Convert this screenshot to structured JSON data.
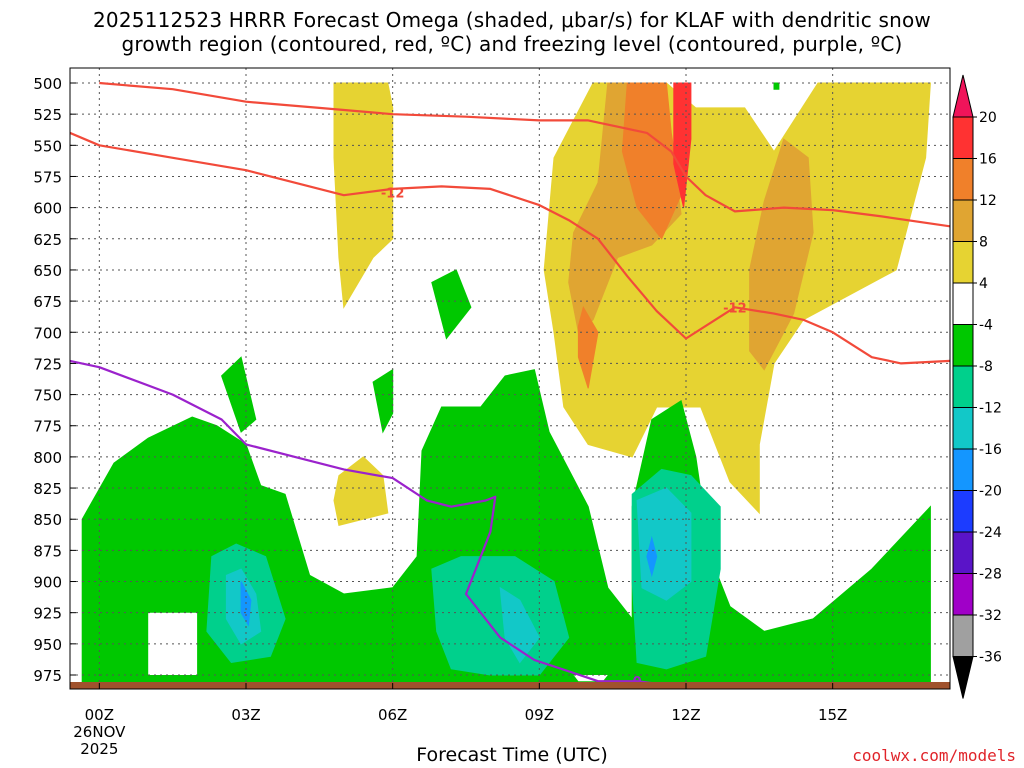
{
  "title": {
    "line1": "2025112523 HRRR Forecast Omega (shaded, μbar/s) for KLAF with dendritic snow",
    "line2": "growth region (contoured, red, ºC) and freezing level (contoured, purple, ºC)"
  },
  "credit": "coolwx.com/models",
  "chart_data": {
    "type": "heatmap",
    "xlabel": "Forecast Time (UTC)",
    "x_ticks": [
      {
        "hour": 0,
        "label": "00Z",
        "sub": [
          "26NOV",
          "2025"
        ]
      },
      {
        "hour": 3,
        "label": "03Z"
      },
      {
        "hour": 6,
        "label": "06Z"
      },
      {
        "hour": 9,
        "label": "09Z"
      },
      {
        "hour": 12,
        "label": "12Z"
      },
      {
        "hour": 15,
        "label": "15Z"
      }
    ],
    "xlim": [
      -0.6,
      17.4
    ],
    "y_ticks": [
      500,
      525,
      550,
      575,
      600,
      625,
      650,
      675,
      700,
      725,
      750,
      775,
      800,
      825,
      850,
      875,
      900,
      925,
      950,
      975
    ],
    "colorbar": {
      "levels": [
        "20",
        "16",
        "12",
        "8",
        "4",
        "-4",
        "-8",
        "-12",
        "-16",
        "-20",
        "-24",
        "-28",
        "-32",
        "-36"
      ],
      "colors": [
        "#f0145a",
        "#ff3232",
        "#f0802a",
        "#e0a532",
        "#e6d332",
        "#ffffff",
        "#00c800",
        "#00d08c",
        "#12c8c8",
        "#1496ff",
        "#1c3cff",
        "#5a14c8",
        "#a000c8",
        "#a0a0a0",
        "#000000"
      ]
    },
    "fills": [
      {
        "name": "ascent-4-8",
        "color": "#e6d332",
        "points": [
          [
            4.8,
            500
          ],
          [
            5.9,
            500
          ],
          [
            6,
            520
          ],
          [
            6,
            625
          ],
          [
            5.6,
            640
          ],
          [
            5,
            680
          ],
          [
            4.9,
            640
          ],
          [
            4.8,
            560
          ]
        ]
      },
      {
        "name": "ascent-4-8",
        "color": "#e6d332",
        "points": [
          [
            9.3,
            560
          ],
          [
            10.1,
            500
          ],
          [
            11.6,
            500
          ],
          [
            12.2,
            520
          ],
          [
            13.2,
            520
          ],
          [
            13.8,
            555
          ],
          [
            14.7,
            500
          ],
          [
            17,
            500
          ],
          [
            16.9,
            560
          ],
          [
            16.3,
            650
          ],
          [
            14.4,
            690
          ],
          [
            13.8,
            725
          ],
          [
            13.5,
            790
          ],
          [
            13.5,
            845
          ],
          [
            12.9,
            820
          ],
          [
            12.3,
            760
          ],
          [
            11.4,
            760
          ],
          [
            10.9,
            800
          ],
          [
            10,
            790
          ],
          [
            9.5,
            760
          ],
          [
            9.3,
            700
          ],
          [
            9.1,
            650
          ]
        ]
      },
      {
        "name": "ascent-8-12",
        "color": "#e0a532",
        "points": [
          [
            10.4,
            500
          ],
          [
            11.6,
            500
          ],
          [
            11.6,
            525
          ],
          [
            11.9,
            605
          ],
          [
            11.3,
            630
          ],
          [
            10.6,
            640
          ],
          [
            10.1,
            690
          ],
          [
            9.8,
            700
          ],
          [
            9.6,
            660
          ],
          [
            9.7,
            620
          ],
          [
            10.2,
            580
          ]
        ]
      },
      {
        "name": "ascent-8-12",
        "color": "#e0a532",
        "points": [
          [
            14,
            545
          ],
          [
            14.5,
            560
          ],
          [
            14.6,
            620
          ],
          [
            14.2,
            685
          ],
          [
            13.6,
            730
          ],
          [
            13.3,
            715
          ],
          [
            13.3,
            650
          ],
          [
            13.6,
            595
          ]
        ]
      },
      {
        "name": "ascent-12-16",
        "color": "#f0802a",
        "points": [
          [
            10.8,
            500
          ],
          [
            11.6,
            500
          ],
          [
            11.7,
            540
          ],
          [
            11.9,
            590
          ],
          [
            11.5,
            625
          ],
          [
            11,
            600
          ],
          [
            10.7,
            555
          ]
        ]
      },
      {
        "name": "ascent-12-16",
        "color": "#f0802a",
        "points": [
          [
            9.9,
            680
          ],
          [
            10.2,
            700
          ],
          [
            10,
            745
          ],
          [
            9.8,
            720
          ],
          [
            9.8,
            695
          ]
        ]
      },
      {
        "name": "ascent-16-20",
        "color": "#ff3232",
        "points": [
          [
            11.75,
            500
          ],
          [
            12.1,
            500
          ],
          [
            12.1,
            545
          ],
          [
            11.95,
            600
          ],
          [
            11.75,
            565
          ]
        ]
      },
      {
        "name": "yellow-small",
        "color": "#e6d332",
        "points": [
          [
            4.9,
            815
          ],
          [
            5.4,
            800
          ],
          [
            5.8,
            815
          ],
          [
            5.9,
            845
          ],
          [
            4.9,
            855
          ],
          [
            4.8,
            835
          ]
        ]
      },
      {
        "name": "yellow-small",
        "color": "#e6d332",
        "points": [
          [
            9.8,
            880
          ],
          [
            10,
            870
          ],
          [
            10.1,
            900
          ],
          [
            9.9,
            945
          ],
          [
            9.8,
            920
          ]
        ]
      },
      {
        "name": "descent-minus4",
        "color": "#00c800",
        "points": [
          [
            -0.35,
            985
          ],
          [
            -0.35,
            850
          ],
          [
            0.3,
            805
          ],
          [
            1,
            785
          ],
          [
            1.9,
            768
          ],
          [
            2.4,
            775
          ],
          [
            3,
            790
          ],
          [
            3.3,
            823
          ],
          [
            3.8,
            830
          ],
          [
            4.3,
            895
          ],
          [
            5,
            910
          ],
          [
            6,
            905
          ],
          [
            6.5,
            880
          ],
          [
            6.6,
            795
          ],
          [
            7,
            760
          ],
          [
            7.8,
            760
          ],
          [
            8.3,
            735
          ],
          [
            8.9,
            730
          ],
          [
            9.2,
            780
          ],
          [
            9.6,
            810
          ],
          [
            10,
            840
          ],
          [
            10.4,
            905
          ],
          [
            10.9,
            930
          ],
          [
            10.9,
            840
          ],
          [
            11.3,
            770
          ],
          [
            11.9,
            755
          ],
          [
            12.2,
            800
          ],
          [
            12.5,
            880
          ],
          [
            12.9,
            920
          ],
          [
            13.6,
            940
          ],
          [
            14.6,
            930
          ],
          [
            15.8,
            890
          ],
          [
            17,
            840
          ],
          [
            17,
            985
          ]
        ]
      },
      {
        "name": "descent-minus4",
        "color": "#00c800",
        "points": [
          [
            5.6,
            740
          ],
          [
            6,
            730
          ],
          [
            6,
            765
          ],
          [
            5.8,
            780
          ]
        ]
      },
      {
        "name": "descent-minus4",
        "color": "#00c800",
        "points": [
          [
            2.5,
            735
          ],
          [
            2.9,
            720
          ],
          [
            3.2,
            770
          ],
          [
            2.9,
            780
          ]
        ]
      },
      {
        "name": "descent-minus4",
        "color": "#00c800",
        "points": [
          [
            6.8,
            660
          ],
          [
            7.3,
            650
          ],
          [
            7.6,
            680
          ],
          [
            7.1,
            705
          ]
        ]
      },
      {
        "name": "descent-minus4",
        "color": "#00c800",
        "points": [
          [
            13.8,
            500
          ],
          [
            13.9,
            500
          ],
          [
            13.9,
            505
          ],
          [
            13.8,
            505
          ]
        ]
      },
      {
        "name": "descent-minus8",
        "color": "#00d08c",
        "points": [
          [
            2.3,
            880
          ],
          [
            2.8,
            870
          ],
          [
            3.4,
            880
          ],
          [
            3.8,
            930
          ],
          [
            3.5,
            960
          ],
          [
            2.7,
            965
          ],
          [
            2.2,
            940
          ]
        ]
      },
      {
        "name": "descent-minus8",
        "color": "#00d08c",
        "points": [
          [
            6.8,
            890
          ],
          [
            7.4,
            880
          ],
          [
            8,
            880
          ],
          [
            8.5,
            880
          ],
          [
            9.3,
            900
          ],
          [
            9.6,
            945
          ],
          [
            9,
            975
          ],
          [
            8,
            975
          ],
          [
            7.2,
            970
          ],
          [
            6.9,
            940
          ]
        ]
      },
      {
        "name": "descent-minus8",
        "color": "#00d08c",
        "points": [
          [
            10.9,
            830
          ],
          [
            11.5,
            810
          ],
          [
            12.1,
            815
          ],
          [
            12.7,
            840
          ],
          [
            12.7,
            890
          ],
          [
            12.4,
            960
          ],
          [
            11.6,
            970
          ],
          [
            11,
            965
          ],
          [
            10.9,
            900
          ]
        ]
      },
      {
        "name": "descent-minus12",
        "color": "#12c8c8",
        "points": [
          [
            2.6,
            895
          ],
          [
            2.9,
            890
          ],
          [
            3.2,
            910
          ],
          [
            3.3,
            940
          ],
          [
            2.9,
            950
          ],
          [
            2.6,
            930
          ]
        ]
      },
      {
        "name": "descent-minus12",
        "color": "#12c8c8",
        "points": [
          [
            8.2,
            905
          ],
          [
            8.6,
            915
          ],
          [
            9,
            945
          ],
          [
            8.6,
            965
          ],
          [
            8.3,
            945
          ]
        ]
      },
      {
        "name": "descent-minus12",
        "color": "#12c8c8",
        "points": [
          [
            11,
            835
          ],
          [
            11.6,
            825
          ],
          [
            12.1,
            845
          ],
          [
            12.1,
            900
          ],
          [
            11.6,
            915
          ],
          [
            11.1,
            905
          ]
        ]
      },
      {
        "name": "descent-minus16",
        "color": "#1496ff",
        "points": [
          [
            2.9,
            900
          ],
          [
            3.1,
            915
          ],
          [
            3.05,
            935
          ],
          [
            2.9,
            925
          ]
        ]
      },
      {
        "name": "descent-minus16",
        "color": "#1496ff",
        "points": [
          [
            11.3,
            865
          ],
          [
            11.4,
            880
          ],
          [
            11.3,
            895
          ],
          [
            11.2,
            880
          ]
        ]
      }
    ],
    "masks": [
      {
        "name": "undefined-low",
        "points": [
          [
            1,
            925
          ],
          [
            2,
            925
          ],
          [
            2,
            975
          ],
          [
            1,
            975
          ]
        ]
      },
      {
        "name": "undefined-low",
        "points": [
          [
            9.7,
            975
          ],
          [
            10.4,
            975
          ],
          [
            10.3,
            980
          ],
          [
            9.8,
            980
          ]
        ]
      }
    ],
    "contours": [
      {
        "name": "dendritic-upper",
        "color": "#f24a3a",
        "points": [
          [
            0,
            500
          ],
          [
            1.5,
            505
          ],
          [
            3,
            515
          ],
          [
            4.5,
            520
          ],
          [
            6,
            525
          ],
          [
            7.5,
            527
          ],
          [
            9,
            530
          ],
          [
            10,
            530
          ],
          [
            11.2,
            540
          ],
          [
            11.7,
            555
          ],
          [
            12,
            575
          ],
          [
            12.4,
            590
          ],
          [
            13,
            603
          ],
          [
            14,
            600
          ],
          [
            15,
            602
          ],
          [
            16,
            607
          ],
          [
            17.4,
            615
          ]
        ]
      },
      {
        "name": "dendritic-lower",
        "color": "#f24a3a",
        "points": [
          [
            -0.6,
            540
          ],
          [
            0,
            550
          ],
          [
            1.5,
            560
          ],
          [
            3,
            570
          ],
          [
            4,
            580
          ],
          [
            5,
            590
          ],
          [
            6,
            585
          ],
          [
            7,
            583
          ],
          [
            8,
            585
          ],
          [
            9,
            598
          ],
          [
            9.6,
            610
          ],
          [
            10.2,
            625
          ],
          [
            10.8,
            655
          ],
          [
            11.4,
            683
          ],
          [
            12,
            705
          ],
          [
            12.6,
            690
          ],
          [
            13,
            680
          ],
          [
            13.8,
            685
          ],
          [
            14.4,
            690
          ],
          [
            15,
            700
          ],
          [
            15.8,
            720
          ],
          [
            16.4,
            725
          ],
          [
            17.4,
            723
          ]
        ]
      },
      {
        "name": "freezing-level",
        "color": "#9b22cc",
        "points": [
          [
            -0.6,
            723
          ],
          [
            0,
            728
          ],
          [
            1.5,
            750
          ],
          [
            2.5,
            770
          ],
          [
            3,
            790
          ],
          [
            4,
            800
          ],
          [
            5,
            810
          ],
          [
            6,
            817
          ],
          [
            6.7,
            835
          ],
          [
            7.2,
            840
          ],
          [
            7.9,
            835
          ],
          [
            8.1,
            832
          ],
          [
            8,
            860
          ],
          [
            7.8,
            880
          ],
          [
            7.5,
            910
          ],
          [
            8.2,
            945
          ],
          [
            8.9,
            963
          ],
          [
            9.6,
            972
          ],
          [
            10.2,
            980
          ],
          [
            10.7,
            980
          ],
          [
            11,
            980
          ],
          [
            12,
            985
          ],
          [
            13.5,
            987
          ],
          [
            15,
            993
          ],
          [
            17.4,
            1000
          ]
        ]
      }
    ],
    "contour_labels": [
      {
        "text": "-12",
        "color": "#f24a3a",
        "x": 6,
        "y": 588
      },
      {
        "text": "-12",
        "color": "#f24a3a",
        "x": 13,
        "y": 680
      },
      {
        "text": "0",
        "color": "#9b22cc",
        "x": 11,
        "y": 980
      }
    ]
  }
}
